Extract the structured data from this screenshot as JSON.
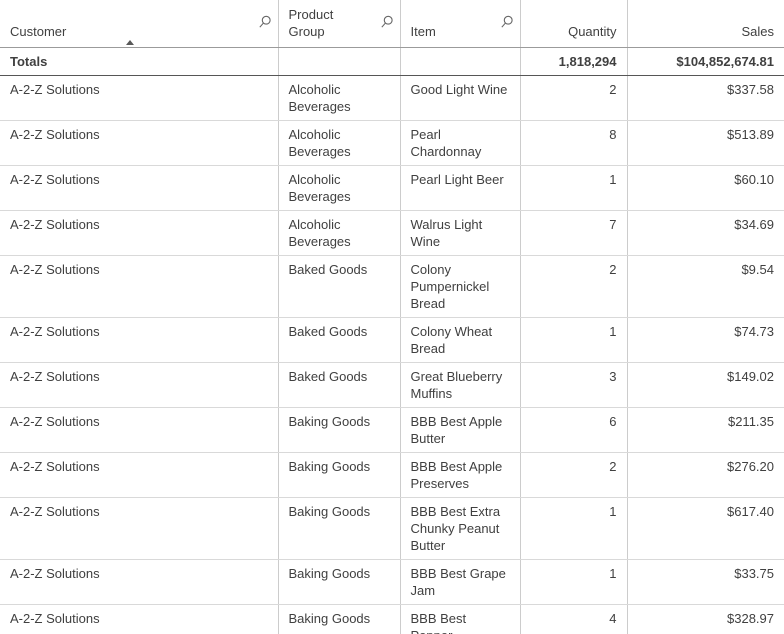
{
  "table": {
    "columns": [
      {
        "label": "Customer",
        "type": "dimension",
        "searchable": true,
        "sorted": "ascending",
        "align": "left"
      },
      {
        "label": "Product\nGroup",
        "type": "dimension",
        "searchable": true,
        "sorted": null,
        "align": "left"
      },
      {
        "label": "Item",
        "type": "dimension",
        "searchable": true,
        "sorted": null,
        "align": "left"
      },
      {
        "label": "Quantity",
        "type": "measure",
        "searchable": false,
        "sorted": null,
        "align": "right"
      },
      {
        "label": "Sales",
        "type": "measure",
        "searchable": false,
        "sorted": null,
        "align": "right"
      }
    ],
    "totals": {
      "label": "Totals",
      "quantity": "1,818,294",
      "sales": "$104,852,674.81"
    },
    "rows": [
      {
        "customer": "A-2-Z Solutions",
        "product_group": "Alcoholic\nBeverages",
        "item": "Good Light Wine",
        "quantity": "2",
        "sales": "$337.58"
      },
      {
        "customer": "A-2-Z Solutions",
        "product_group": "Alcoholic\nBeverages",
        "item": "Pearl Chardonnay",
        "quantity": "8",
        "sales": "$513.89"
      },
      {
        "customer": "A-2-Z Solutions",
        "product_group": "Alcoholic\nBeverages",
        "item": "Pearl Light Beer",
        "quantity": "1",
        "sales": "$60.10"
      },
      {
        "customer": "A-2-Z Solutions",
        "product_group": "Alcoholic\nBeverages",
        "item": "Walrus Light Wine",
        "quantity": "7",
        "sales": "$34.69"
      },
      {
        "customer": "A-2-Z Solutions",
        "product_group": "Baked Goods",
        "item": "Colony\nPumpernickel\nBread",
        "quantity": "2",
        "sales": "$9.54"
      },
      {
        "customer": "A-2-Z Solutions",
        "product_group": "Baked Goods",
        "item": "Colony Wheat\nBread",
        "quantity": "1",
        "sales": "$74.73"
      },
      {
        "customer": "A-2-Z Solutions",
        "product_group": "Baked Goods",
        "item": "Great Blueberry\nMuffins",
        "quantity": "3",
        "sales": "$149.02"
      },
      {
        "customer": "A-2-Z Solutions",
        "product_group": "Baking Goods",
        "item": "BBB Best Apple\nButter",
        "quantity": "6",
        "sales": "$211.35"
      },
      {
        "customer": "A-2-Z Solutions",
        "product_group": "Baking Goods",
        "item": "BBB Best Apple\nPreserves",
        "quantity": "2",
        "sales": "$276.20"
      },
      {
        "customer": "A-2-Z Solutions",
        "product_group": "Baking Goods",
        "item": "BBB Best Extra\nChunky Peanut\nButter",
        "quantity": "1",
        "sales": "$617.40"
      },
      {
        "customer": "A-2-Z Solutions",
        "product_group": "Baking Goods",
        "item": "BBB Best Grape\nJam",
        "quantity": "1",
        "sales": "$33.75"
      },
      {
        "customer": "A-2-Z Solutions",
        "product_group": "Baking Goods",
        "item": "BBB Best Pepper",
        "quantity": "4",
        "sales": "$328.97"
      }
    ]
  },
  "colors": {
    "text": "#404040",
    "column_border": "#cccccc",
    "row_border": "#d9d9d9",
    "header_border": "#9b9b9b",
    "totals_border": "#565656",
    "icon": "#666666",
    "sort_indicator": "#595959",
    "background": "#ffffff"
  }
}
